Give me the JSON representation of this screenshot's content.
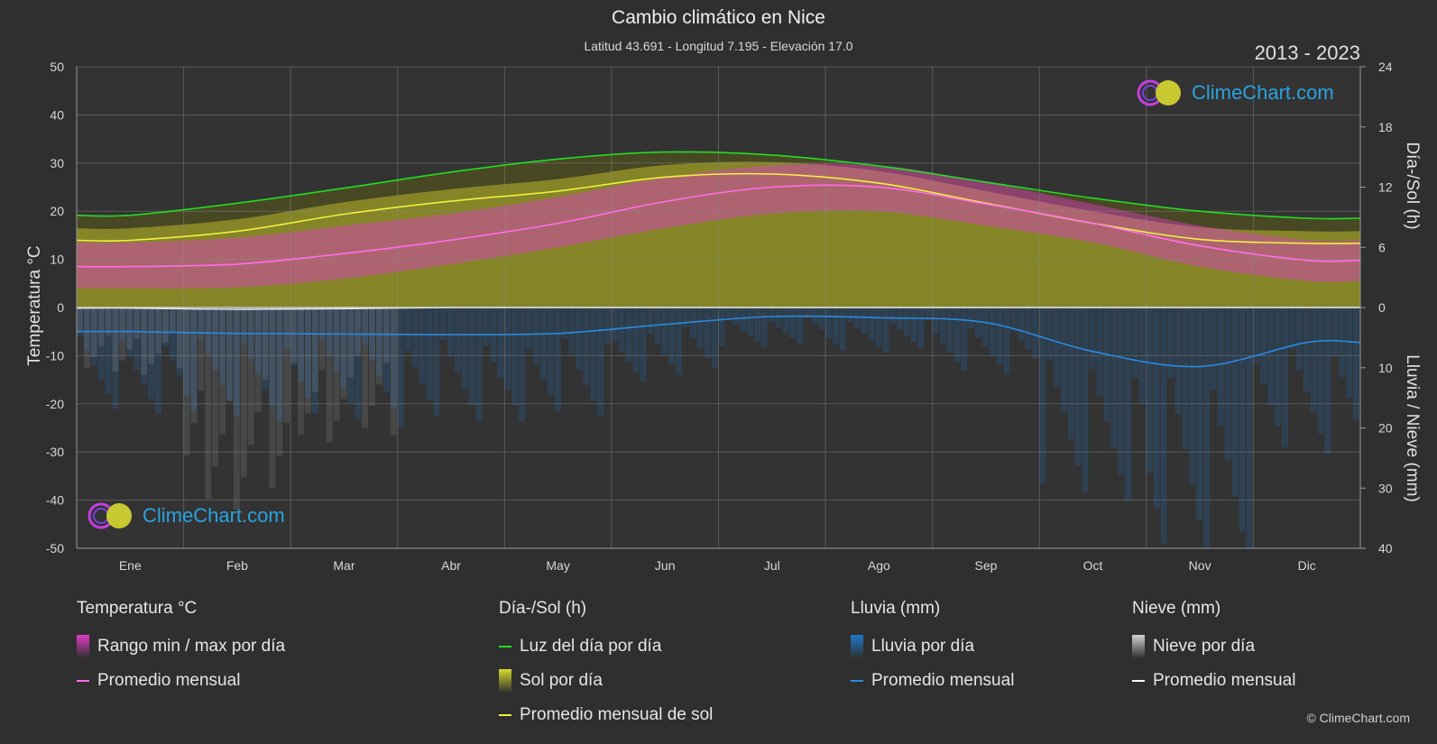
{
  "header": {
    "title": "Cambio climático en Nice",
    "subtitle": "Latitud 43.691 - Longitud 7.195 - Elevación 17.0",
    "years": "2013 - 2023"
  },
  "brand": {
    "name": "ClimeChart.com",
    "copyright": "© ClimeChart.com"
  },
  "colors": {
    "background": "#2f2f2f",
    "temp_range": "#e03cc8",
    "temp_avg": "#ff6ee8",
    "daylight": "#22dd22",
    "sun_fill": "#9a9a2a",
    "sun_avg": "#f0f040",
    "rain": "#1f78c8",
    "rain_avg": "#2a8ae0",
    "snow": "#c8c8c8",
    "snow_avg": "#ffffff"
  },
  "chart_data": {
    "type": "area",
    "months": [
      "Ene",
      "Feb",
      "Mar",
      "Abr",
      "May",
      "Jun",
      "Jul",
      "Ago",
      "Sep",
      "Oct",
      "Nov",
      "Dic"
    ],
    "left_axis": {
      "label": "Temperatura °C",
      "range": [
        -50,
        50
      ],
      "ticks": [
        50,
        40,
        30,
        20,
        10,
        0,
        -10,
        -20,
        -30,
        -40,
        -50
      ]
    },
    "right_axis_top": {
      "label": "Día-/Sol (h)",
      "range": [
        0,
        24
      ],
      "ticks": [
        24,
        18,
        12,
        6,
        0
      ]
    },
    "right_axis_bottom": {
      "label": "Lluvia / Nieve (mm)",
      "range": [
        0,
        40
      ],
      "ticks": [
        0,
        10,
        20,
        30,
        40
      ]
    },
    "series": [
      {
        "name": "Luz del día por día",
        "unit": "h",
        "values": [
          9.2,
          10.4,
          11.9,
          13.5,
          14.8,
          15.5,
          15.2,
          14.1,
          12.5,
          10.9,
          9.6,
          8.9
        ]
      },
      {
        "name": "Promedio mensual de sol",
        "unit": "h",
        "values": [
          6.7,
          7.6,
          9.3,
          10.6,
          11.6,
          13.0,
          13.3,
          12.4,
          10.4,
          8.4,
          6.8,
          6.4
        ]
      },
      {
        "name": "Promedio mensual",
        "unit": "°C",
        "values": [
          8.5,
          9.0,
          11.2,
          14.0,
          17.5,
          22.0,
          25.0,
          25.0,
          21.5,
          17.5,
          12.8,
          9.8
        ]
      },
      {
        "name": "Rango máx por día",
        "unit": "°C",
        "values": [
          13.5,
          14.5,
          17.0,
          19.5,
          23.0,
          27.0,
          29.5,
          29.5,
          26.0,
          21.5,
          17.0,
          14.0
        ]
      },
      {
        "name": "Rango mín por día",
        "unit": "°C",
        "values": [
          4.0,
          4.2,
          6.0,
          9.0,
          12.5,
          16.5,
          19.5,
          20.0,
          17.0,
          13.5,
          8.5,
          5.5
        ]
      },
      {
        "name": "Lluvia promedio mensual",
        "unit": "mm",
        "values": [
          4.0,
          4.3,
          4.4,
          4.5,
          4.3,
          2.8,
          1.5,
          1.7,
          2.5,
          7.3,
          9.8,
          5.8
        ]
      },
      {
        "name": "Nieve promedio mensual",
        "unit": "mm",
        "values": [
          0.1,
          0.3,
          0.2,
          0,
          0,
          0,
          0,
          0,
          0,
          0,
          0,
          0
        ]
      }
    ]
  },
  "legend": [
    {
      "heading": "Temperatura °C",
      "items": [
        {
          "label": "Rango min / max por día",
          "kind": "box",
          "color": "#e03cc8"
        },
        {
          "label": "Promedio mensual",
          "kind": "line",
          "color": "#ff6ee8"
        }
      ]
    },
    {
      "heading": "Día-/Sol (h)",
      "items": [
        {
          "label": "Luz del día por día",
          "kind": "line",
          "color": "#22dd22"
        },
        {
          "label": "Sol por día",
          "kind": "box",
          "color": "#d8d830"
        },
        {
          "label": "Promedio mensual de sol",
          "kind": "line",
          "color": "#f0f040"
        }
      ]
    },
    {
      "heading": "Lluvia (mm)",
      "items": [
        {
          "label": "Lluvia por día",
          "kind": "box",
          "color": "#1f78c8"
        },
        {
          "label": "Promedio mensual",
          "kind": "line",
          "color": "#2a8ae0"
        }
      ]
    },
    {
      "heading": "Nieve (mm)",
      "items": [
        {
          "label": "Nieve por día",
          "kind": "box",
          "color": "#d0d0d0"
        },
        {
          "label": "Promedio mensual",
          "kind": "line",
          "color": "#ffffff"
        }
      ]
    }
  ]
}
